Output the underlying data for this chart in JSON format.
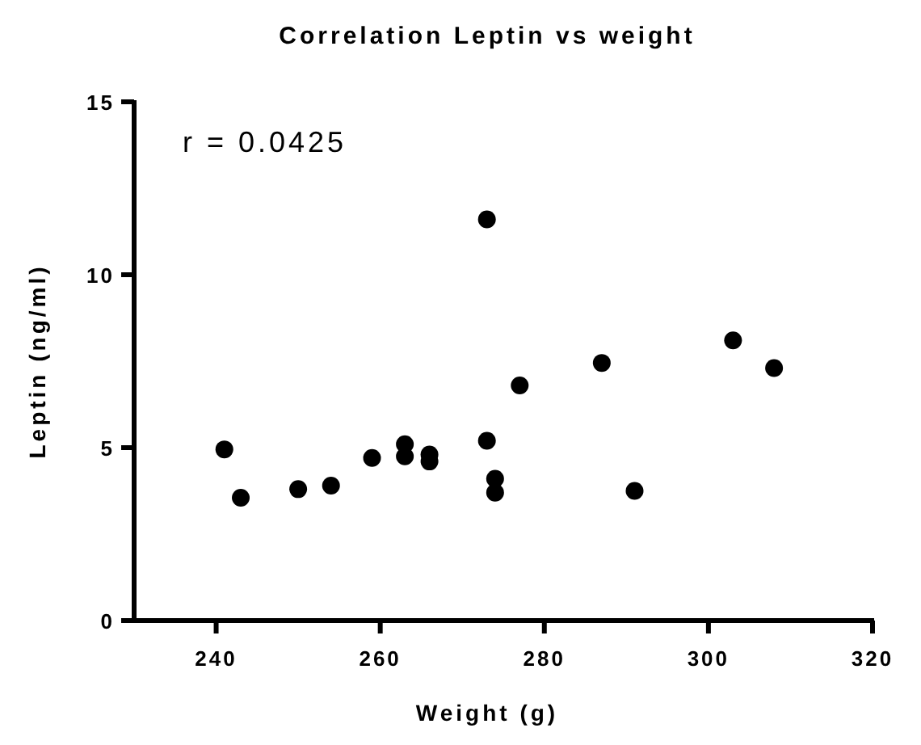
{
  "chart_data": {
    "type": "scatter",
    "title": "Correlation Leptin vs weight",
    "xlabel": "Weight (g)",
    "ylabel": "Leptin (ng/ml)",
    "annotations": [
      "r = 0.0425"
    ],
    "marker": "circle",
    "series": [
      {
        "color": "#000000",
        "x": [
          241,
          243,
          250,
          254,
          259,
          263,
          263,
          266,
          266,
          273,
          273,
          274,
          274,
          277,
          287,
          291,
          303,
          308
        ],
        "values": [
          4.95,
          3.55,
          3.8,
          3.9,
          4.7,
          5.1,
          4.75,
          4.8,
          4.6,
          11.6,
          5.2,
          4.1,
          3.7,
          6.8,
          7.45,
          3.75,
          8.1,
          7.3
        ]
      }
    ],
    "xlim": [
      230,
      320
    ],
    "xticks": [
      240,
      260,
      280,
      300,
      320
    ],
    "ylim": [
      0,
      15
    ],
    "yticks": [
      0,
      5,
      10,
      15
    ]
  }
}
